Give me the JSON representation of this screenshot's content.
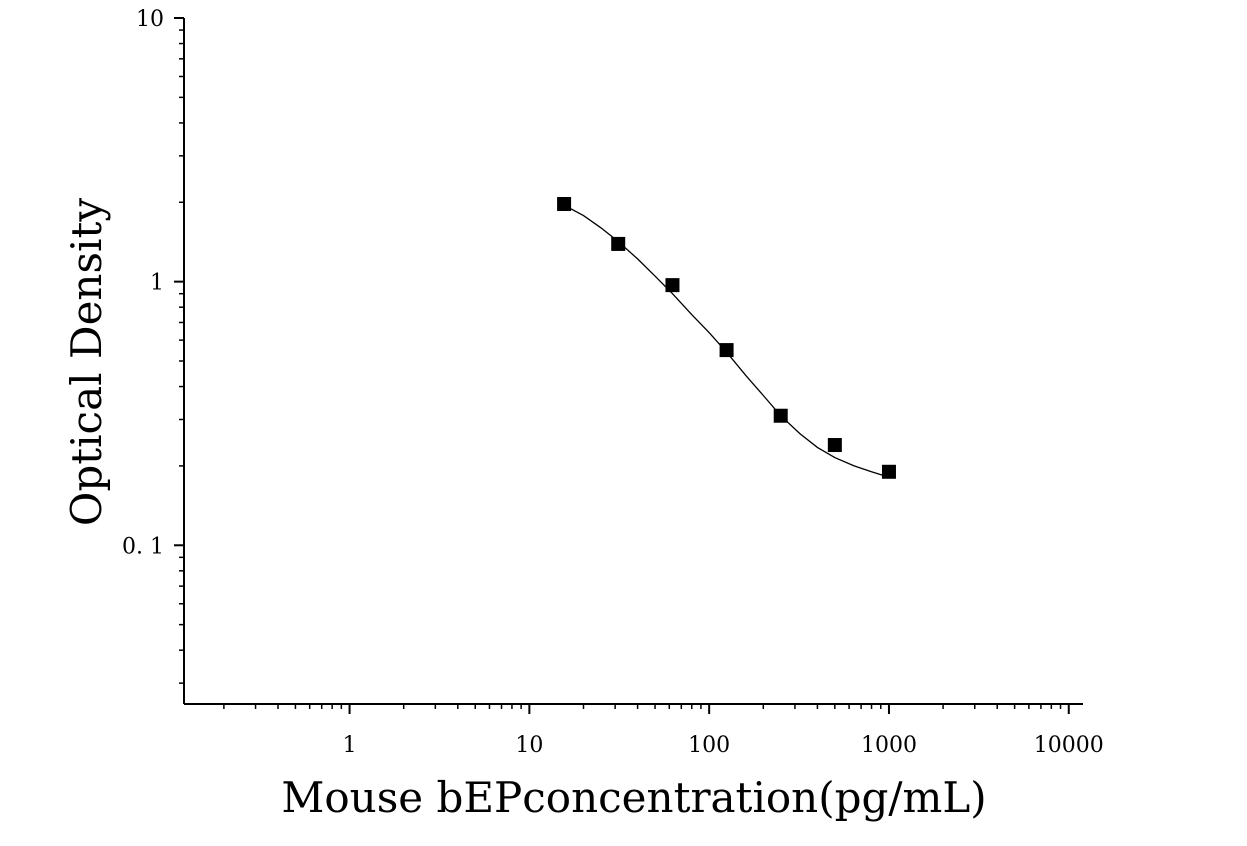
{
  "chart_data": {
    "type": "scatter",
    "title": "",
    "xlabel": "Mouse bEPconcentration(pg/mL)",
    "ylabel": "Optical Density",
    "x_scale": "log",
    "y_scale": "log",
    "xlim": [
      0.12,
      12000
    ],
    "ylim": [
      0.025,
      10
    ],
    "x_tick_labels": [
      "1",
      "10",
      "100",
      "1000",
      "10000"
    ],
    "y_tick_labels": [
      "10",
      "1",
      "0. 1"
    ],
    "grid": false,
    "series": [
      {
        "marker": "square",
        "color": "#000000",
        "x": [
          15.6,
          31.2,
          62.5,
          125,
          250,
          500,
          1000
        ],
        "y": [
          1.97,
          1.39,
          0.97,
          0.55,
          0.31,
          0.24,
          0.19
        ]
      }
    ],
    "fit_curve": {
      "type": "four-parameter logistic",
      "color": "#000000",
      "x": [
        15.6,
        20,
        25,
        31.2,
        40,
        50,
        62.5,
        80,
        100,
        125,
        160,
        200,
        250,
        320,
        400,
        500,
        640,
        800,
        1000
      ],
      "y": [
        1.95,
        1.78,
        1.6,
        1.42,
        1.22,
        1.05,
        0.9,
        0.75,
        0.64,
        0.54,
        0.44,
        0.37,
        0.31,
        0.265,
        0.235,
        0.215,
        0.2,
        0.19,
        0.181
      ]
    }
  }
}
